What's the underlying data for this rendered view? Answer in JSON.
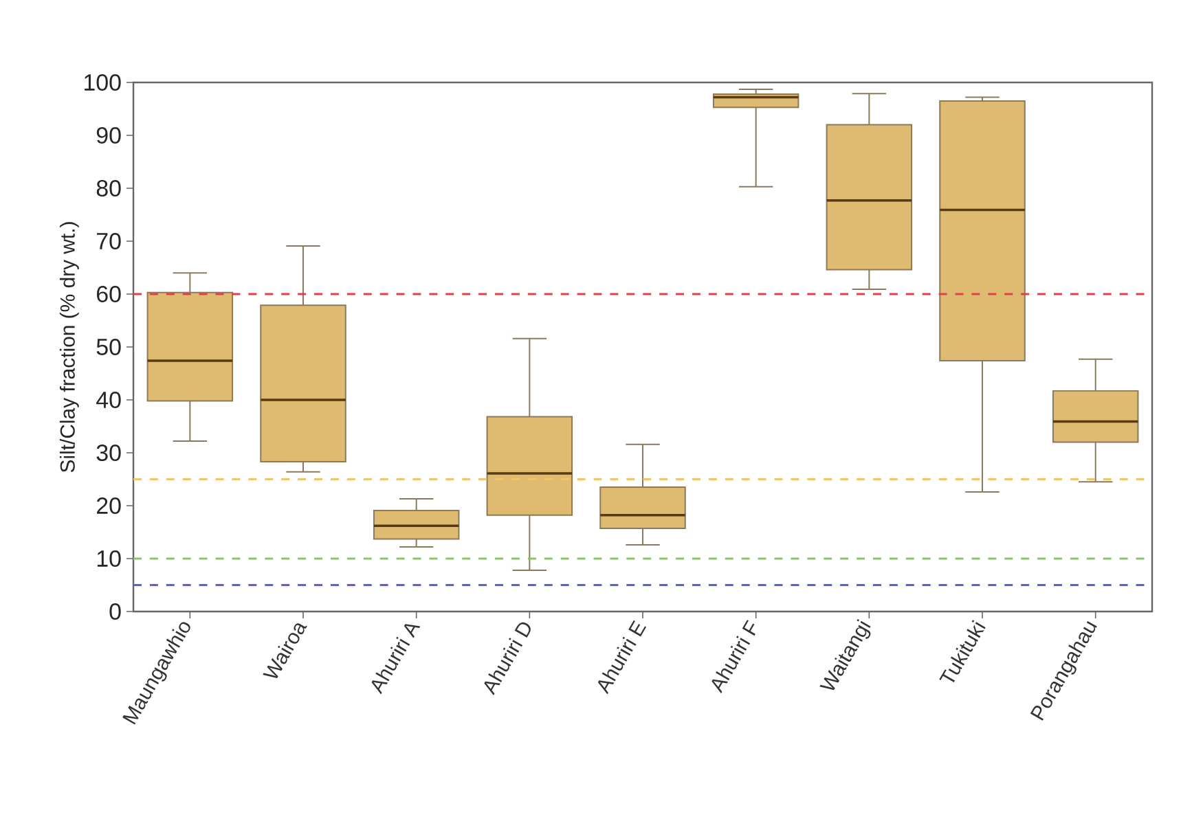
{
  "chart_data": {
    "type": "box",
    "ylabel": "Silt/Clay fraction (% dry wt.)",
    "categories": [
      "Maungawhio",
      "Wairoa",
      "Ahuriri A",
      "Ahuriri D",
      "Ahuriri E",
      "Ahuriri F",
      "Waitangi",
      "Tukituki",
      "Porangahau"
    ],
    "series": [
      {
        "color": "#dfbb72",
        "boxes": [
          {
            "low": 32.2,
            "q1": 39.8,
            "median": 47.4,
            "q3": 60.3,
            "high": 64.0
          },
          {
            "low": 26.4,
            "q1": 28.3,
            "median": 40.0,
            "q3": 57.9,
            "high": 69.1
          },
          {
            "low": 12.2,
            "q1": 13.7,
            "median": 16.2,
            "q3": 19.1,
            "high": 21.3
          },
          {
            "low": 7.8,
            "q1": 18.2,
            "median": 26.1,
            "q3": 36.8,
            "high": 51.6
          },
          {
            "low": 12.6,
            "q1": 15.7,
            "median": 18.2,
            "q3": 23.5,
            "high": 31.6
          },
          {
            "low": 80.3,
            "q1": 95.3,
            "median": 97.2,
            "q3": 97.8,
            "high": 98.7
          },
          {
            "low": 60.9,
            "q1": 64.6,
            "median": 77.7,
            "q3": 92.0,
            "high": 97.9
          },
          {
            "low": 22.6,
            "q1": 47.4,
            "median": 75.9,
            "q3": 96.5,
            "high": 97.2
          },
          {
            "low": 24.5,
            "q1": 32.0,
            "median": 35.9,
            "q3": 41.7,
            "high": 47.7
          }
        ]
      }
    ],
    "ylim": [
      0,
      100
    ],
    "yticks": [
      0,
      10,
      20,
      30,
      40,
      50,
      60,
      70,
      80,
      90,
      100
    ],
    "ref_lines": [
      {
        "axis": "y",
        "value": 60,
        "color": "#e0404a",
        "line_style": "dashed"
      },
      {
        "axis": "y",
        "value": 25,
        "color": "#f2c46c",
        "line_style": "dashed"
      },
      {
        "axis": "y",
        "value": 10,
        "color": "#8cc46c",
        "line_style": "dashed"
      },
      {
        "axis": "y",
        "value": 5,
        "color": "#6064b4",
        "line_style": "dashed"
      }
    ]
  }
}
